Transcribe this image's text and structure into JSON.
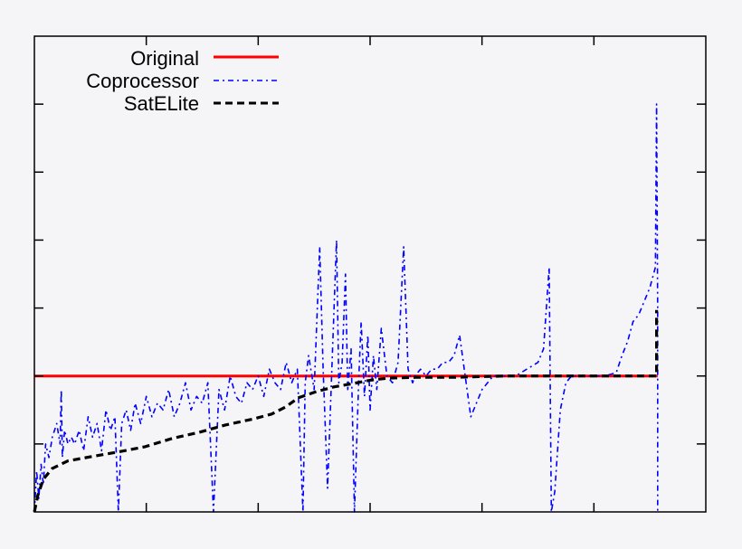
{
  "chart_data": {
    "type": "line",
    "title": "",
    "xlabel": "",
    "ylabel": "",
    "xlim": [
      0,
      6
    ],
    "ylim": [
      0,
      7
    ],
    "x_ticks": [
      0,
      1,
      2,
      3,
      4,
      5,
      6
    ],
    "y_ticks": [
      0,
      1,
      2,
      3,
      4,
      5,
      6,
      7
    ],
    "x_tick_labels": [],
    "y_tick_labels": [],
    "grid": false,
    "legend_position": "top-left",
    "legend": [
      "Original",
      "Coprocessor",
      "SatELite"
    ],
    "series": [
      {
        "name": "Original",
        "color": "#ff0000",
        "style": "solid",
        "x": [
          0,
          5.57
        ],
        "y": [
          2.0,
          2.0
        ]
      },
      {
        "name": "Coprocessor",
        "color": "#0000ff",
        "style": "dash-dot",
        "x": [
          0.0,
          0.02,
          0.04,
          0.06,
          0.08,
          0.1,
          0.13,
          0.16,
          0.2,
          0.23,
          0.24,
          0.25,
          0.27,
          0.3,
          0.33,
          0.36,
          0.4,
          0.44,
          0.48,
          0.52,
          0.56,
          0.6,
          0.64,
          0.68,
          0.72,
          0.75,
          0.78,
          0.82,
          0.86,
          0.9,
          0.95,
          1.0,
          1.05,
          1.1,
          1.15,
          1.2,
          1.25,
          1.3,
          1.35,
          1.4,
          1.45,
          1.5,
          1.55,
          1.6,
          1.65,
          1.7,
          1.75,
          1.8,
          1.85,
          1.9,
          1.95,
          2.0,
          2.05,
          2.1,
          2.15,
          2.2,
          2.25,
          2.3,
          2.35,
          2.4,
          2.42,
          2.45,
          2.5,
          2.55,
          2.58,
          2.62,
          2.66,
          2.7,
          2.72,
          2.75,
          2.78,
          2.8,
          2.83,
          2.86,
          2.9,
          2.92,
          2.95,
          2.98,
          3.0,
          3.03,
          3.06,
          3.1,
          3.15,
          3.2,
          3.25,
          3.3,
          3.34,
          3.38,
          3.4,
          3.45,
          3.5,
          3.55,
          3.6,
          3.65,
          3.7,
          3.75,
          3.8,
          3.9,
          4.0,
          4.05,
          4.1,
          4.15,
          4.2,
          4.3,
          4.4,
          4.5,
          4.55,
          4.6,
          4.62,
          4.65,
          4.7,
          4.75,
          4.8,
          4.85,
          4.9,
          5.0,
          5.1,
          5.2,
          5.25,
          5.3,
          5.35,
          5.4,
          5.45,
          5.5,
          5.55,
          5.56,
          5.57,
          5.57
        ],
        "y": [
          0.0,
          0.6,
          0.2,
          0.7,
          0.4,
          1.0,
          0.8,
          1.1,
          1.3,
          1.0,
          1.8,
          0.8,
          1.2,
          1.0,
          1.1,
          1.0,
          1.2,
          0.9,
          1.4,
          1.1,
          1.3,
          0.9,
          1.5,
          1.2,
          1.4,
          0.0,
          1.3,
          1.5,
          1.2,
          1.6,
          1.3,
          1.7,
          1.4,
          1.6,
          1.5,
          1.8,
          1.4,
          1.6,
          1.9,
          1.5,
          1.7,
          1.6,
          1.9,
          0.0,
          1.8,
          1.5,
          2.0,
          1.7,
          1.6,
          1.9,
          1.8,
          2.0,
          1.7,
          2.1,
          1.9,
          1.8,
          2.2,
          1.9,
          2.1,
          0.0,
          1.9,
          2.3,
          1.8,
          3.9,
          2.1,
          0.35,
          2.2,
          4.0,
          1.9,
          2.2,
          3.5,
          1.8,
          2.4,
          0.0,
          2.0,
          2.8,
          1.7,
          2.6,
          1.5,
          2.3,
          1.8,
          2.7,
          2.0,
          1.9,
          2.2,
          3.9,
          2.1,
          1.9,
          2.0,
          2.1,
          2.0,
          2.1,
          2.1,
          2.2,
          2.2,
          2.3,
          2.6,
          1.4,
          1.8,
          1.9,
          2.0,
          2.0,
          2.0,
          2.0,
          2.1,
          2.2,
          2.4,
          3.6,
          0.0,
          0.3,
          1.5,
          1.9,
          2.0,
          2.0,
          2.0,
          2.0,
          2.0,
          2.05,
          2.3,
          2.5,
          2.8,
          2.9,
          3.1,
          3.3,
          3.6,
          6.0,
          3.0,
          0.0
        ]
      },
      {
        "name": "SatELite",
        "color": "#000000",
        "style": "dashed",
        "x": [
          0.0,
          0.03,
          0.08,
          0.16,
          0.3,
          0.5,
          0.74,
          0.99,
          1.23,
          1.47,
          1.71,
          1.96,
          2.12,
          2.24,
          2.36,
          2.52,
          2.68,
          2.85,
          3.01,
          3.17,
          3.41,
          3.74,
          4.22,
          4.71,
          5.35,
          5.56,
          5.56
        ],
        "y": [
          0.0,
          0.24,
          0.48,
          0.64,
          0.75,
          0.81,
          0.88,
          0.96,
          1.08,
          1.17,
          1.28,
          1.37,
          1.44,
          1.54,
          1.68,
          1.77,
          1.84,
          1.89,
          1.94,
          1.97,
          1.98,
          1.98,
          2.0,
          2.0,
          2.0,
          2.0,
          2.97
        ]
      }
    ]
  },
  "legend": {
    "items": [
      {
        "label": "Original",
        "color": "#ff0000",
        "dash": ""
      },
      {
        "label": "Coprocessor",
        "color": "#0000ff",
        "dash": "6 4 2 4"
      },
      {
        "label": "SatELite",
        "color": "#000000",
        "dash": "8 5"
      }
    ]
  },
  "colors": {
    "background": "#f5f5f7",
    "axis": "#000000"
  }
}
